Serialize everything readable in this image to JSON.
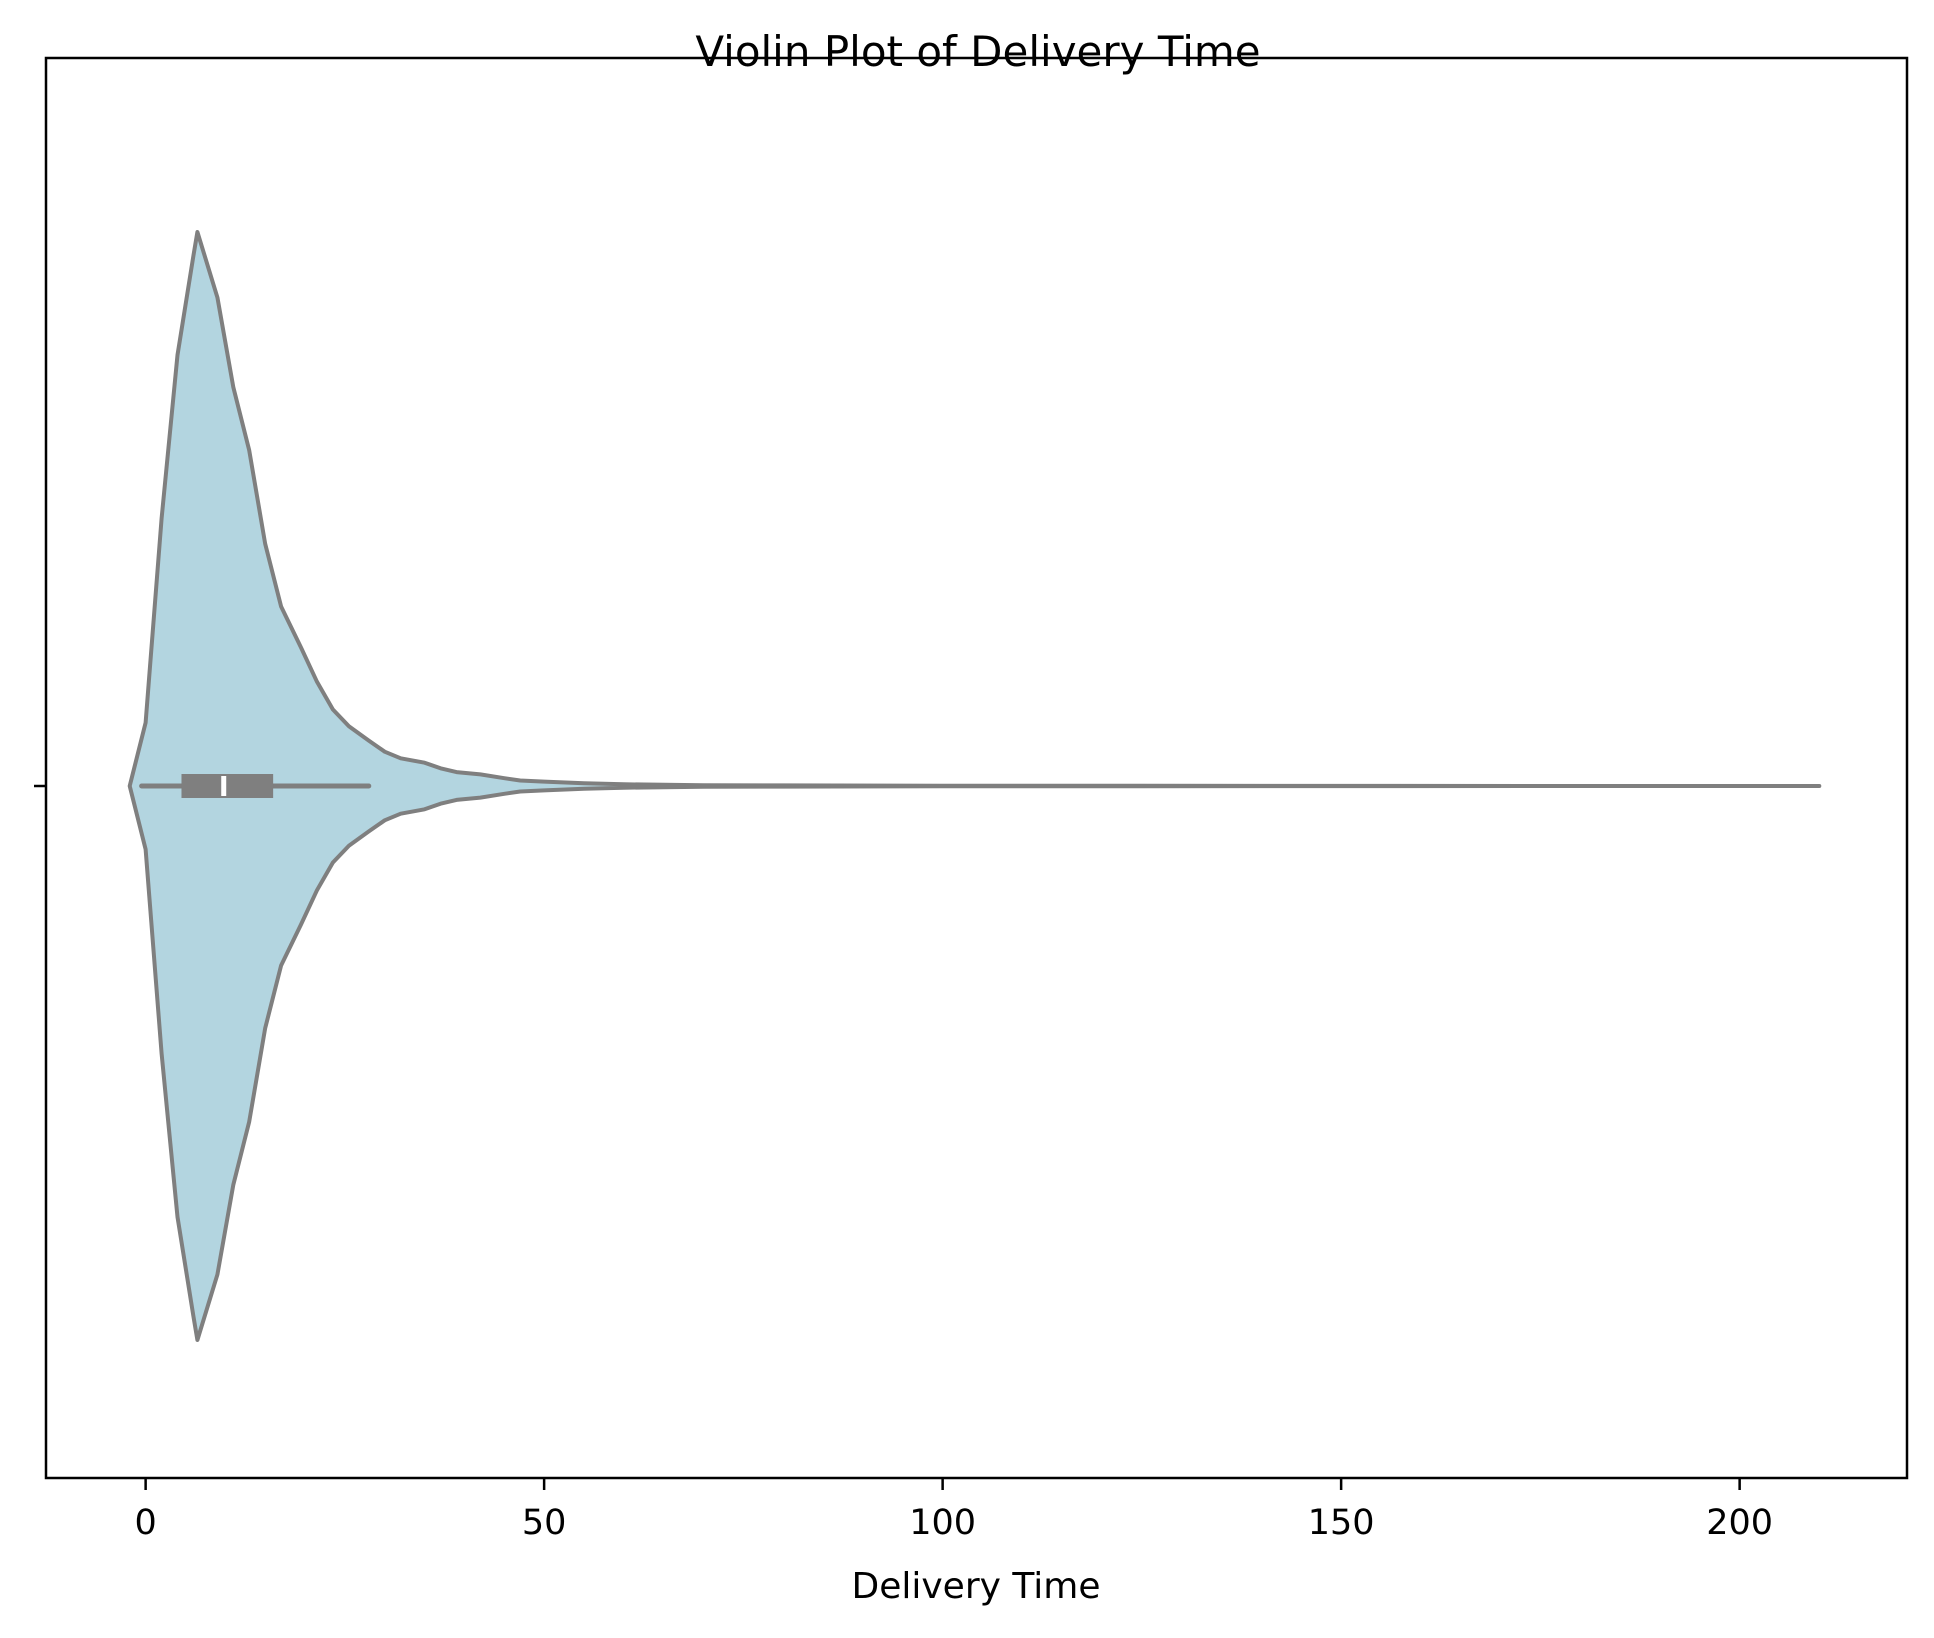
{
  "chart_data": {
    "type": "violin",
    "title": "Violin Plot of Delivery Time",
    "xlabel": "Delivery Time",
    "ylabel": "",
    "orientation": "horizontal",
    "xlim": [
      -12.5,
      221
    ],
    "xticks": [
      0,
      50,
      100,
      150,
      200
    ],
    "xtick_labels": [
      "0",
      "50",
      "100",
      "150",
      "200"
    ],
    "grid": false,
    "fill_color": "#b3d5e0",
    "line_color": "#7f7f7f",
    "density": {
      "x": [
        -2,
        0,
        2,
        4,
        6,
        6.5,
        9,
        11,
        13,
        15,
        17,
        19.5,
        21.5,
        23.5,
        25.5,
        28,
        30,
        32,
        35,
        37,
        39,
        42,
        45,
        47,
        50,
        55,
        60,
        70,
        80,
        100,
        150,
        210
      ],
      "width": [
        0,
        0.114,
        0.483,
        0.778,
        0.957,
        1.0,
        0.882,
        0.72,
        0.606,
        0.437,
        0.324,
        0.25,
        0.188,
        0.138,
        0.108,
        0.082,
        0.062,
        0.05,
        0.042,
        0.032,
        0.025,
        0.021,
        0.014,
        0.01,
        0.008,
        0.005,
        0.003,
        0.0015,
        0.001,
        0.0005,
        0.0002,
        0
      ]
    },
    "box": {
      "whisker_low": -0.5,
      "q1": 4.5,
      "median": 9.8,
      "q3": 16,
      "whisker_high": 28
    }
  }
}
